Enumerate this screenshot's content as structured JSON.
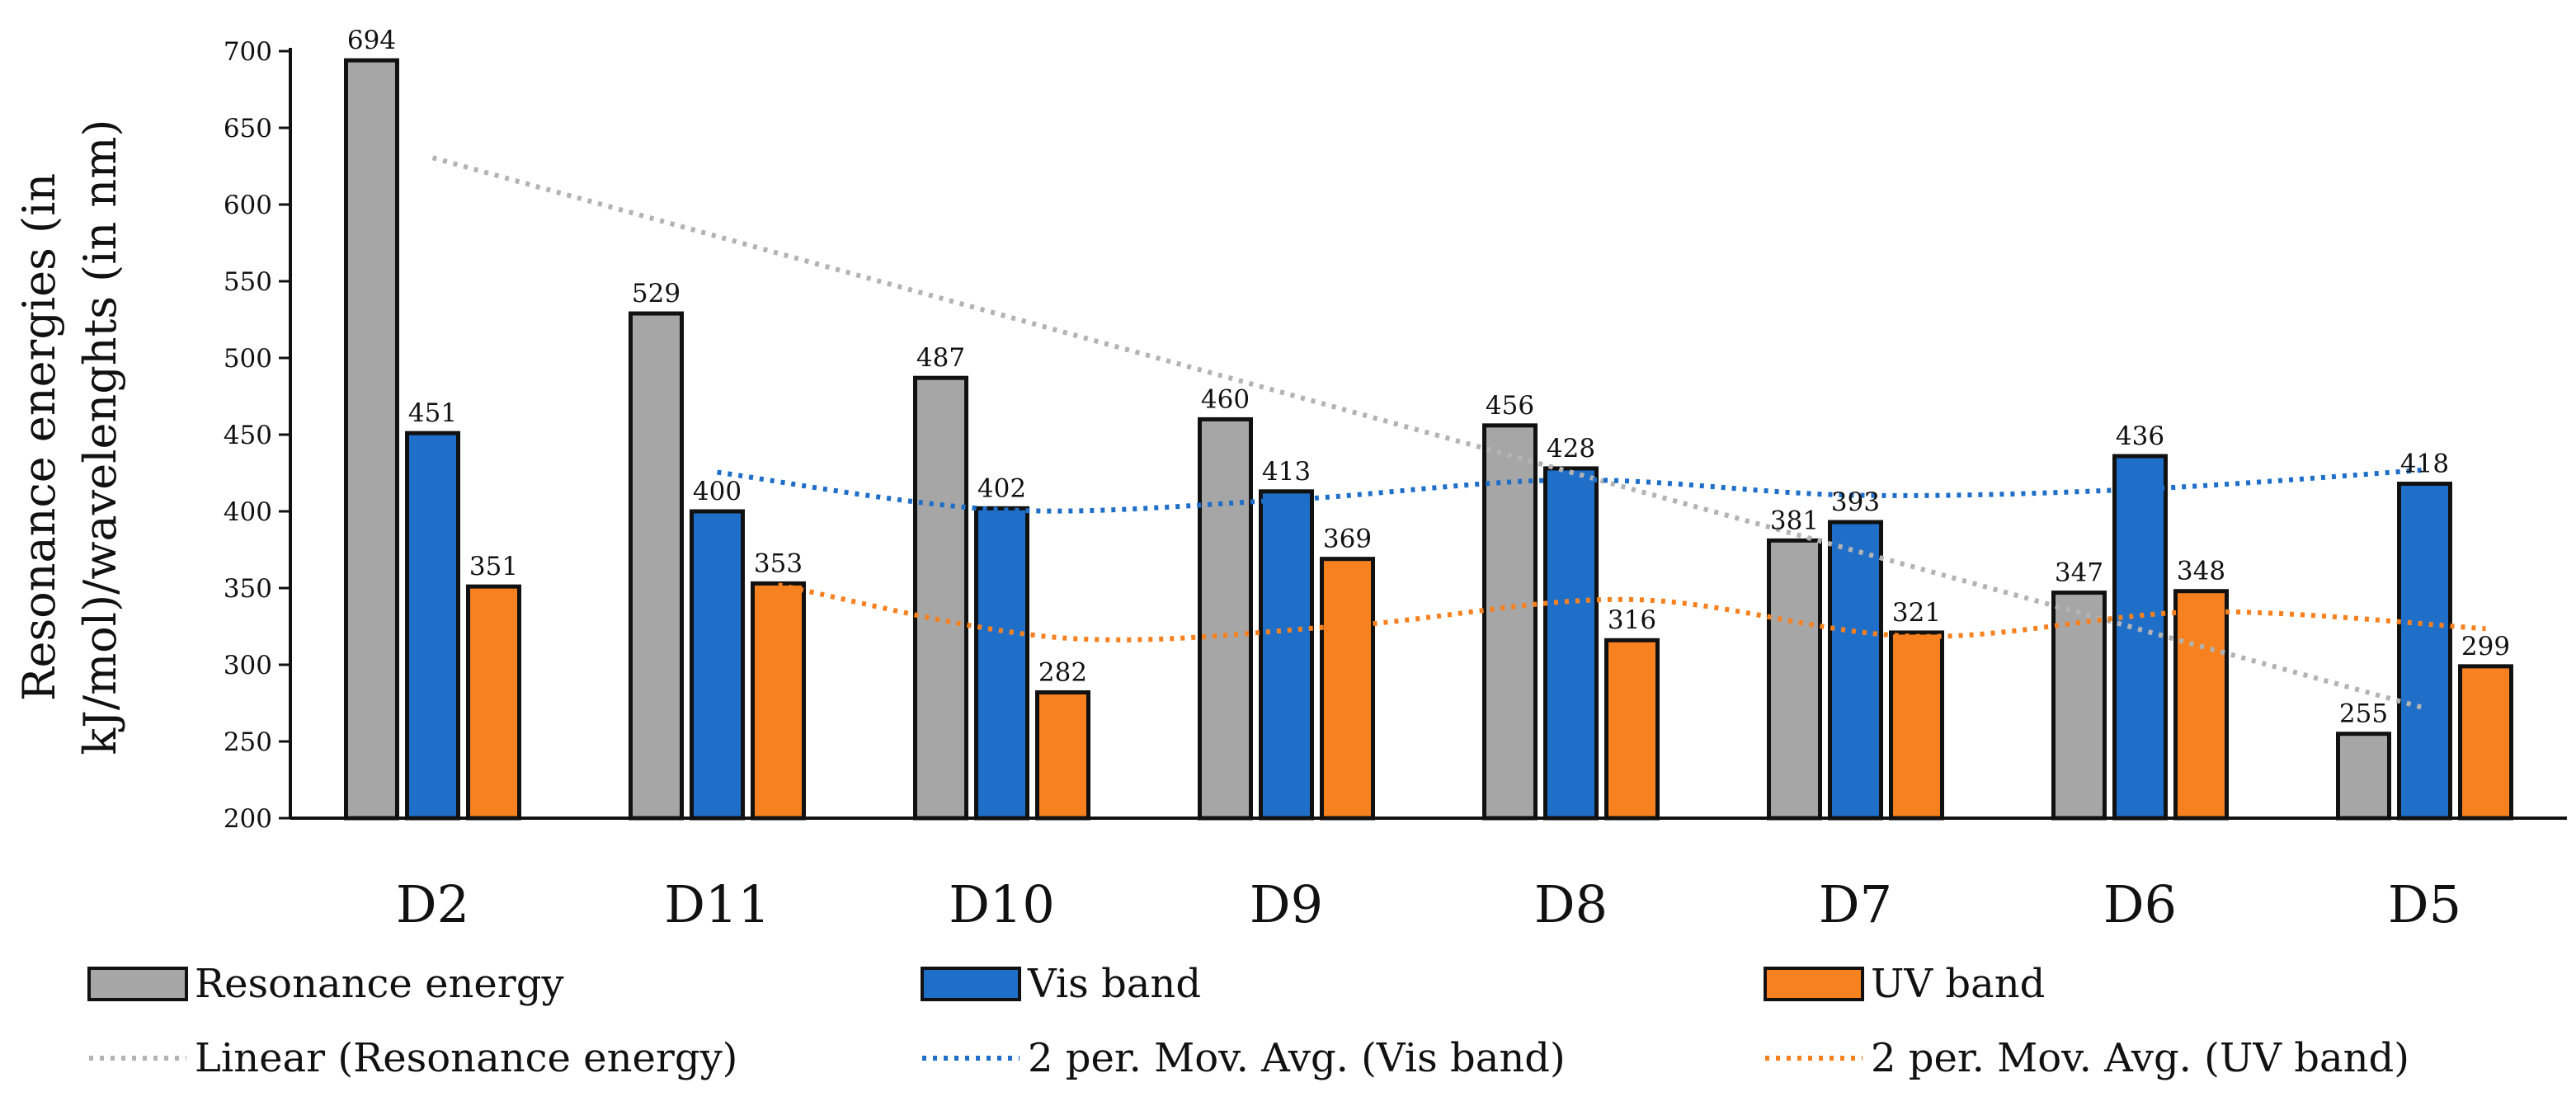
{
  "chart_data": {
    "type": "bar",
    "title": "",
    "xlabel": "",
    "ylabel_line1": "Resonance energies (in",
    "ylabel_line2": "kJ/mol)/wavelenghts (in nm)",
    "ylim": [
      200,
      700
    ],
    "yticks": [
      200,
      250,
      300,
      350,
      400,
      450,
      500,
      550,
      600,
      650,
      700
    ],
    "categories": [
      "D2",
      "D11",
      "D10",
      "D9",
      "D8",
      "D7",
      "D6",
      "D5"
    ],
    "series": [
      {
        "name": "Resonance energy",
        "color": "#a6a6a6",
        "values": [
          694,
          529,
          487,
          460,
          456,
          381,
          347,
          255
        ]
      },
      {
        "name": "Vis band",
        "color": "#1f6fc9",
        "values": [
          451,
          400,
          402,
          413,
          428,
          393,
          436,
          418
        ]
      },
      {
        "name": "UV band",
        "color": "#f7811f",
        "values": [
          351,
          353,
          282,
          369,
          316,
          321,
          348,
          299
        ]
      }
    ],
    "trendlines": [
      {
        "name": "Linear (Resonance energy)",
        "type": "linear",
        "series": 0,
        "color": "#b3b3b3"
      },
      {
        "name": "2 per. Mov. Avg. (Vis band)",
        "type": "moving_average",
        "period": 2,
        "series": 1,
        "color": "#1f6fc9"
      },
      {
        "name": "2 per. Mov. Avg. (UV band)",
        "type": "moving_average",
        "period": 2,
        "series": 2,
        "color": "#f7811f"
      }
    ],
    "legend_position": "bottom",
    "grid": false
  }
}
